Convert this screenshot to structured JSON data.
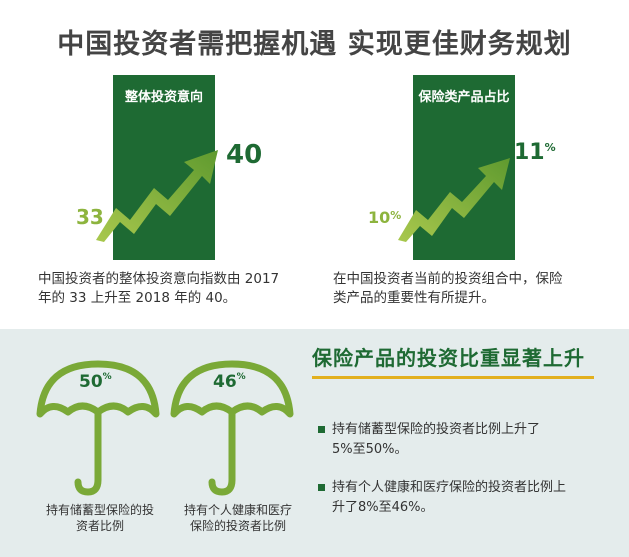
{
  "title": "中国投资者需把握机遇 实现更佳财务规划",
  "left_panel": {
    "label": "整体投资意向",
    "start_value": "33",
    "end_value": "40",
    "description_line1": "中国投资者的整体投资意向指数由 2017",
    "description_line2": "年的 33 上升至 2018 年的 40。"
  },
  "right_panel": {
    "label": "保险类产品占比",
    "start_value": "10",
    "start_unit": "%",
    "end_value": "11",
    "end_unit": "%",
    "description_line1": "在中国投资者当前的投资组合中，保险",
    "description_line2": "类产品的重要性有所提升。"
  },
  "umbrellas": [
    {
      "value": "50",
      "unit": "%",
      "caption_line1": "持有储蓄型保险的投",
      "caption_line2": "资者比例"
    },
    {
      "value": "46",
      "unit": "%",
      "caption_line1": "持有个人健康和医疗",
      "caption_line2": "保险的投资者比例"
    }
  ],
  "section": {
    "title": "保险产品的投资比重显著上升",
    "bullets": [
      {
        "line1": "持有储蓄型保险的投资者比例上升了",
        "line2": "5%至50%。"
      },
      {
        "line1": "持有个人健康和医疗保险的投资者比例上",
        "line2": "升了8%至46%。"
      }
    ]
  },
  "colors": {
    "dark_green": "#1e6a33",
    "light_green": "#8db43e",
    "accent_yellow": "#e2b01e",
    "band_background": "#e4ecec"
  }
}
